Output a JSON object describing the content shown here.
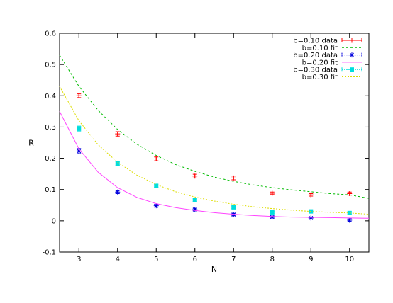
{
  "chart_data": {
    "type": "scatter",
    "title": "",
    "xlabel": "N",
    "ylabel": "R",
    "xlim": [
      2.5,
      10.5
    ],
    "ylim": [
      -0.1,
      0.6
    ],
    "xticks": [
      3,
      4,
      5,
      6,
      7,
      8,
      9,
      10
    ],
    "yticks": [
      -0.1,
      0,
      0.1,
      0.2,
      0.3,
      0.4,
      0.5,
      0.6
    ],
    "xtick_labels": [
      "3",
      "4",
      "5",
      "6",
      "7",
      "8",
      "9",
      "10"
    ],
    "ytick_labels": [
      "-0.1",
      "0",
      "0.1",
      "0.2",
      "0.3",
      "0.4",
      "0.5",
      "0.6"
    ],
    "grid": false,
    "legend_position": "top-right",
    "series": [
      {
        "name": "b=0.10 data",
        "kind": "points",
        "marker": "plus",
        "color": "#ff0000",
        "x": [
          3,
          4,
          5,
          6,
          7,
          8,
          9,
          10
        ],
        "y": [
          0.4,
          0.278,
          0.198,
          0.143,
          0.137,
          0.088,
          0.083,
          0.087
        ],
        "err": [
          0.006,
          0.007,
          0.006,
          0.006,
          0.006,
          0.004,
          0.004,
          0.005
        ]
      },
      {
        "name": "b=0.10 fit",
        "kind": "line",
        "dash": "3,3",
        "color": "#00bb00",
        "x": [
          2.5,
          3,
          3.5,
          4,
          4.5,
          5,
          5.5,
          6,
          6.5,
          7,
          7.5,
          8,
          8.5,
          9,
          9.5,
          10,
          10.5
        ],
        "y": [
          0.53,
          0.43,
          0.353,
          0.292,
          0.245,
          0.209,
          0.18,
          0.158,
          0.14,
          0.126,
          0.115,
          0.106,
          0.099,
          0.093,
          0.087,
          0.083,
          0.072
        ]
      },
      {
        "name": "b=0.20 data",
        "kind": "points",
        "marker": "star",
        "color": "#0000dd",
        "x": [
          3,
          4,
          5,
          6,
          7,
          8,
          9,
          10
        ],
        "y": [
          0.223,
          0.092,
          0.048,
          0.036,
          0.02,
          0.012,
          0.009,
          0.002
        ],
        "err": [
          0.008,
          0.005,
          0.004,
          0.004,
          0.004,
          0.003,
          0.003,
          0.004
        ]
      },
      {
        "name": "b=0.20 fit",
        "kind": "line",
        "dash": "",
        "color": "#ff44ff",
        "x": [
          2.5,
          3,
          3.5,
          4,
          4.5,
          5,
          5.5,
          6,
          6.5,
          7,
          7.5,
          8,
          8.5,
          9,
          9.5,
          10,
          10.5
        ],
        "y": [
          0.35,
          0.23,
          0.155,
          0.106,
          0.075,
          0.055,
          0.042,
          0.033,
          0.026,
          0.021,
          0.017,
          0.014,
          0.012,
          0.011,
          0.01,
          0.009,
          0.008
        ]
      },
      {
        "name": "b=0.30 data",
        "kind": "points",
        "marker": "square",
        "color": "#00dddd",
        "x": [
          3,
          4,
          5,
          6,
          7,
          8,
          9,
          10
        ],
        "y": [
          0.295,
          0.183,
          0.112,
          0.066,
          0.043,
          0.027,
          0.03,
          0.025
        ],
        "err": [
          0.008,
          0.006,
          0.005,
          0.004,
          0.004,
          0.003,
          0.003,
          0.004
        ]
      },
      {
        "name": "b=0.30 fit",
        "kind": "line",
        "dash": "2,2",
        "color": "#dddd00",
        "x": [
          2.5,
          3,
          3.5,
          4,
          4.5,
          5,
          5.5,
          6,
          6.5,
          7,
          7.5,
          8,
          8.5,
          9,
          9.5,
          10,
          10.5
        ],
        "y": [
          0.43,
          0.32,
          0.243,
          0.187,
          0.146,
          0.116,
          0.093,
          0.076,
          0.063,
          0.053,
          0.045,
          0.039,
          0.034,
          0.03,
          0.027,
          0.025,
          0.021
        ]
      }
    ]
  }
}
